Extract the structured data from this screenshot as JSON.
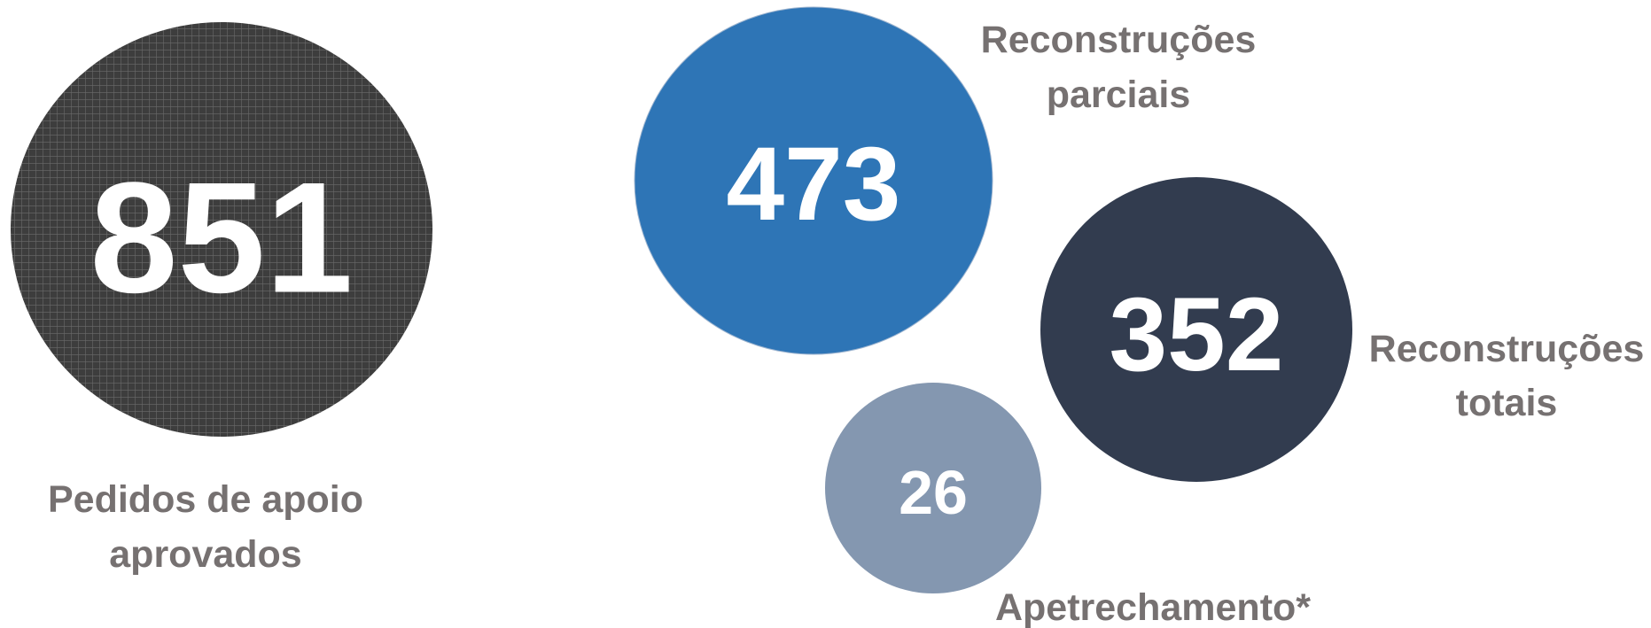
{
  "total": {
    "value": "851",
    "label": [
      "Pedidos de apoio",
      "aprovados"
    ]
  },
  "items": [
    {
      "value": "473",
      "label": [
        "Reconstruções",
        "parciais"
      ]
    },
    {
      "value": "352",
      "label": [
        "Reconstruções",
        "totais"
      ]
    },
    {
      "value": "26",
      "label": [
        "Apetrechamento*"
      ]
    }
  ]
}
